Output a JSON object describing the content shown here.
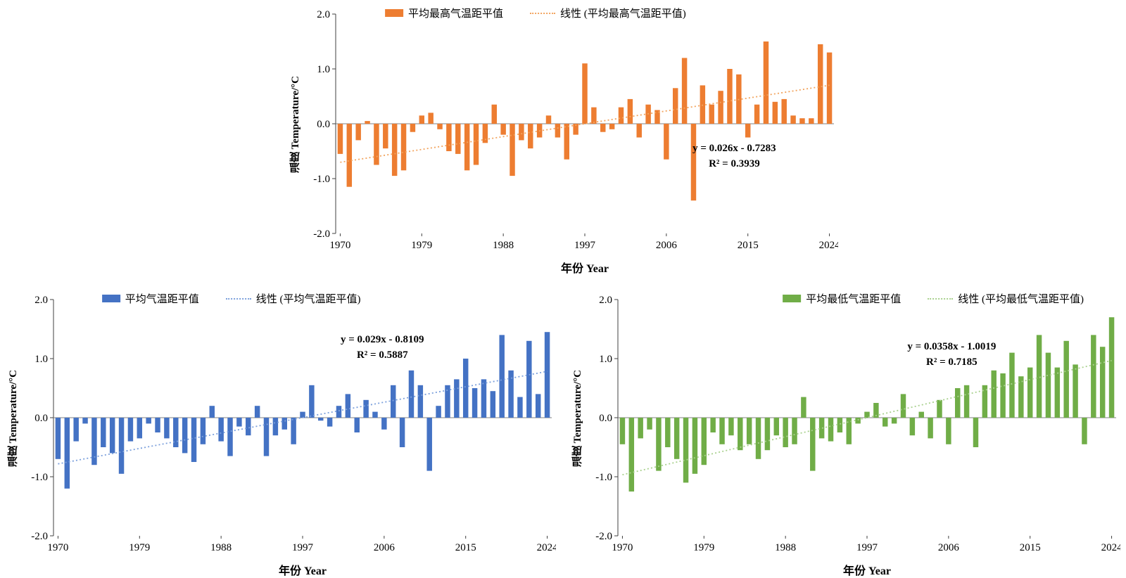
{
  "page": {
    "background": "#ffffff"
  },
  "chart_data": [
    {
      "id": "mean-max-temp-anomaly",
      "type": "bar",
      "title": "",
      "legend_series": "平均最高气温距平值",
      "legend_trend": "线性 (平均最高气温距平值)",
      "ylabel": "温度 Temperature/°C",
      "xlabel": "年份 Year",
      "bar_color": "#ED7D31",
      "trend_color": "#F2A45E",
      "ylim": [
        -2.0,
        2.0
      ],
      "yticks": [
        2.0,
        1.0,
        0.0,
        -1.0,
        -2.0
      ],
      "x_ticks": [
        1970,
        1979,
        1988,
        1997,
        2006,
        2015,
        2024
      ],
      "year_start": 1970,
      "year_end": 2024,
      "grid": false,
      "legend_position": "top",
      "values": [
        -0.55,
        -1.15,
        -0.3,
        0.05,
        -0.75,
        -0.45,
        -0.95,
        -0.85,
        -0.15,
        0.15,
        0.2,
        -0.1,
        -0.5,
        -0.55,
        -0.85,
        -0.75,
        -0.35,
        0.35,
        -0.2,
        -0.95,
        -0.3,
        -0.45,
        -0.25,
        0.15,
        -0.25,
        -0.65,
        -0.2,
        1.1,
        0.3,
        -0.15,
        -0.1,
        0.3,
        0.45,
        -0.25,
        0.35,
        0.25,
        -0.65,
        0.65,
        1.2,
        -1.4,
        0.7,
        0.35,
        0.6,
        1.0,
        0.9,
        -0.25,
        0.35,
        1.5,
        0.4,
        0.45,
        0.15,
        0.1,
        0.1,
        1.45,
        1.3
      ],
      "trend": {
        "slope": 0.026,
        "intercept": -0.7283,
        "equation": "y = 0.026x - 0.7283",
        "r2": 0.3939,
        "r2_text": "R² = 0.3939"
      },
      "annotation": {
        "x": 0.8,
        "y": 0.58
      }
    },
    {
      "id": "mean-temp-anomaly",
      "type": "bar",
      "title": "",
      "legend_series": "平均气温距平值",
      "legend_trend": "线性 (平均气温距平值)",
      "ylabel": "温度 Temperature/°C",
      "xlabel": "年份 Year",
      "bar_color": "#4472C4",
      "trend_color": "#7CA0DC",
      "ylim": [
        -2.0,
        2.0
      ],
      "yticks": [
        2.0,
        1.0,
        0.0,
        -1.0,
        -2.0
      ],
      "x_ticks": [
        1970,
        1979,
        1988,
        1997,
        2006,
        2015,
        2024
      ],
      "year_start": 1970,
      "year_end": 2024,
      "grid": false,
      "legend_position": "top",
      "values": [
        -0.7,
        -1.2,
        -0.4,
        -0.1,
        -0.8,
        -0.5,
        -0.6,
        -0.95,
        -0.4,
        -0.35,
        -0.1,
        -0.25,
        -0.35,
        -0.5,
        -0.6,
        -0.75,
        -0.45,
        0.2,
        -0.4,
        -0.65,
        -0.15,
        -0.3,
        0.2,
        -0.65,
        -0.3,
        -0.2,
        -0.45,
        0.1,
        0.55,
        -0.05,
        -0.15,
        0.2,
        0.4,
        -0.25,
        0.3,
        0.1,
        -0.2,
        0.55,
        -0.5,
        0.8,
        0.55,
        -0.9,
        0.2,
        0.55,
        0.65,
        1.0,
        0.5,
        0.65,
        0.45,
        1.4,
        0.8,
        0.35,
        1.3,
        0.4,
        1.45
      ],
      "trend": {
        "slope": 0.029,
        "intercept": -0.8109,
        "equation": "y = 0.029x - 0.8109",
        "r2": 0.5887,
        "r2_text": "R² = 0.5887"
      },
      "annotation": {
        "x": 0.66,
        "y": 0.14
      }
    },
    {
      "id": "mean-min-temp-anomaly",
      "type": "bar",
      "title": "",
      "legend_series": "平均最低气温距平值",
      "legend_trend": "线性 (平均最低气温距平值)",
      "ylabel": "温度 Temperature/°C",
      "xlabel": "年份 Year",
      "bar_color": "#70AD47",
      "trend_color": "#A9D18E",
      "ylim": [
        -2.0,
        2.0
      ],
      "yticks": [
        2.0,
        1.0,
        0.0,
        -1.0,
        -2.0
      ],
      "x_ticks": [
        1970,
        1979,
        1988,
        1997,
        2006,
        2015,
        2024
      ],
      "year_start": 1970,
      "year_end": 2024,
      "grid": false,
      "legend_position": "top",
      "values": [
        -0.45,
        -1.25,
        -0.35,
        -0.2,
        -0.9,
        -0.5,
        -0.7,
        -1.1,
        -0.95,
        -0.8,
        -0.25,
        -0.45,
        -0.3,
        -0.55,
        -0.45,
        -0.7,
        -0.55,
        -0.3,
        -0.5,
        -0.45,
        0.35,
        -0.9,
        -0.35,
        -0.4,
        -0.25,
        -0.45,
        -0.1,
        0.1,
        0.25,
        -0.15,
        -0.1,
        0.4,
        -0.3,
        0.1,
        -0.35,
        0.3,
        -0.45,
        0.5,
        0.55,
        -0.5,
        0.55,
        0.8,
        0.75,
        1.1,
        0.7,
        0.85,
        1.4,
        1.1,
        0.85,
        1.3,
        0.9,
        -0.45,
        1.4,
        1.2,
        1.7
      ],
      "trend": {
        "slope": 0.0358,
        "intercept": -1.0019,
        "equation": "y = 0.0358x - 1.0019",
        "r2": 0.7185,
        "r2_text": "R² = 0.7185"
      },
      "annotation": {
        "x": 0.67,
        "y": 0.17
      }
    }
  ]
}
